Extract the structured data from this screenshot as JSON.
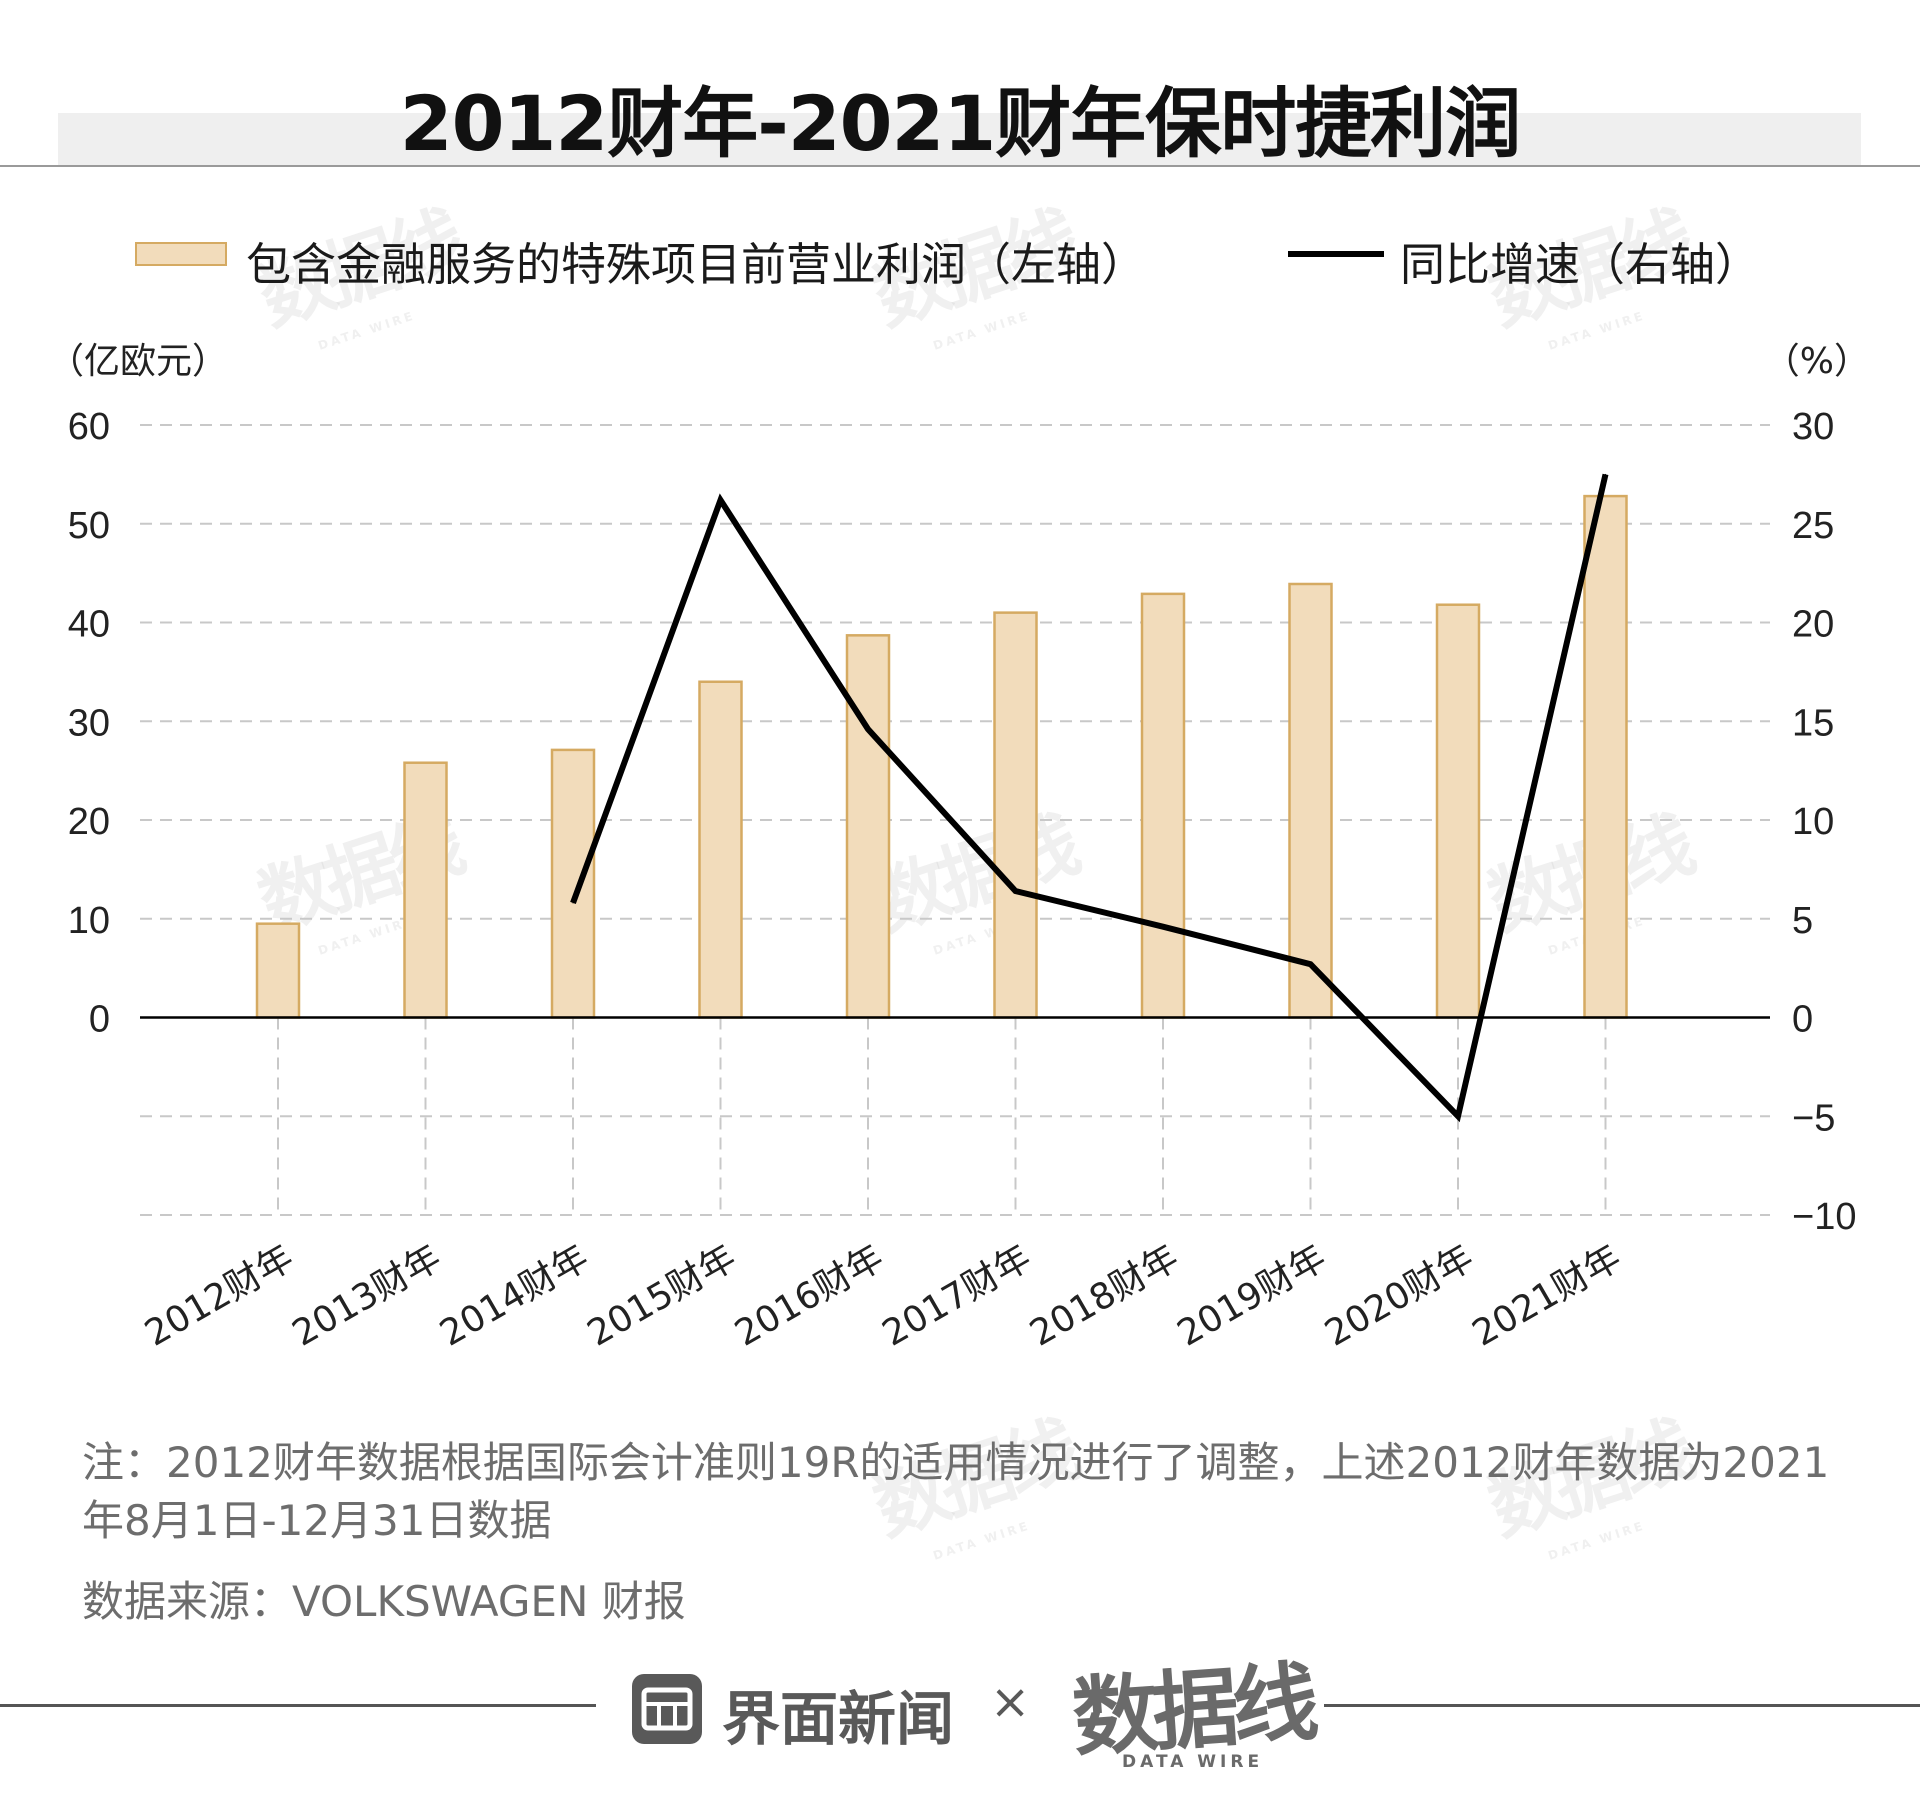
{
  "title": "2012财年-2021财年保时捷利润",
  "legend": {
    "bar_label": "包含金融服务的特殊项目前营业利润（左轴）",
    "line_label": "同比增速（右轴）"
  },
  "axis_units": {
    "left": "（亿欧元）",
    "right": "（%）"
  },
  "colors": {
    "bar_fill": "#f2dcbb",
    "bar_stroke": "#d5aa62",
    "line": "#000000",
    "grid": "#c8c8c8"
  },
  "chart_data": {
    "type": "bar",
    "categories": [
      "2012财年",
      "2013财年",
      "2014财年",
      "2015财年",
      "2016财年",
      "2017财年",
      "2018财年",
      "2019财年",
      "2020财年",
      "2021财年"
    ],
    "left_axis": {
      "unit": "（亿欧元）",
      "ticks": [
        0,
        10,
        20,
        30,
        40,
        50,
        60
      ],
      "ylim": [
        -20,
        60
      ]
    },
    "right_axis": {
      "unit": "（%）",
      "ticks": [
        -10,
        -5,
        0,
        5,
        10,
        15,
        20,
        25,
        30
      ],
      "ylim": [
        -10,
        30
      ]
    },
    "series": [
      {
        "name": "包含金融服务的特殊项目前营业利润（左轴）",
        "type": "bar",
        "axis": "left",
        "values": [
          9.5,
          25.8,
          27.1,
          34.0,
          38.7,
          41.0,
          42.9,
          43.9,
          41.8,
          52.8
        ]
      },
      {
        "name": "同比增速（右轴）",
        "type": "line",
        "axis": "right",
        "values": [
          null,
          null,
          5.8,
          26.2,
          14.6,
          6.4,
          4.6,
          2.7,
          -5.0,
          27.5
        ]
      }
    ],
    "grid": true,
    "legend_position": "top"
  },
  "note": "注：2012财年数据根据国际会计准则19R的适用情况进行了调整，上述2012财年数据为2021年8月1日-12月31日数据",
  "source": "数据来源：VOLKSWAGEN 财报",
  "footer": {
    "brand": "界面新闻",
    "separator": "×",
    "partner": "数据线",
    "partner_sub": "DATA WIRE"
  },
  "watermark": {
    "text": "数据线",
    "sub": "DATA WIRE"
  }
}
